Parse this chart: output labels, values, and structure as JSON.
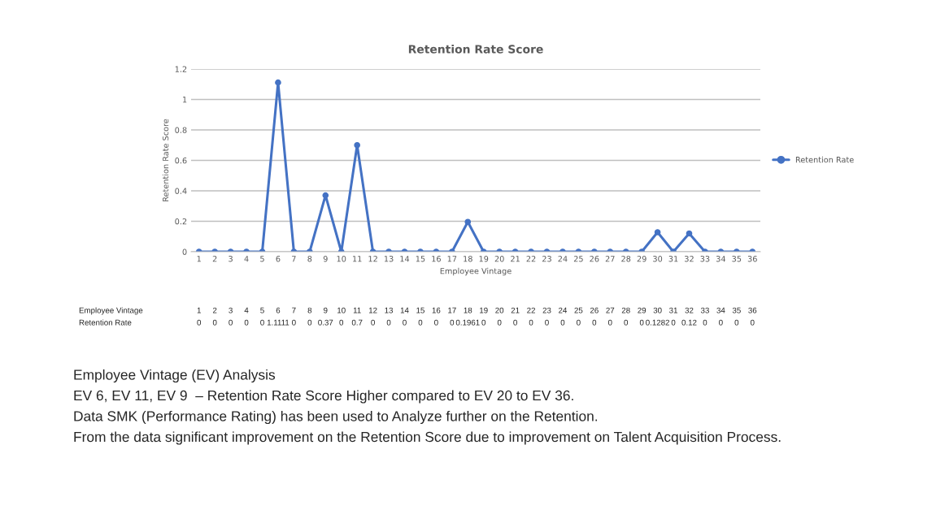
{
  "chart_data": {
    "type": "line",
    "title": "Retention Rate Score",
    "xlabel": "Employee Vintage",
    "ylabel": "Retention Rate Score",
    "categories": [
      "1",
      "2",
      "3",
      "4",
      "5",
      "6",
      "7",
      "8",
      "9",
      "10",
      "11",
      "12",
      "13",
      "14",
      "15",
      "16",
      "17",
      "18",
      "19",
      "20",
      "21",
      "22",
      "23",
      "24",
      "25",
      "26",
      "27",
      "28",
      "29",
      "30",
      "31",
      "32",
      "33",
      "34",
      "35",
      "36"
    ],
    "series": [
      {
        "name": "Retention Rate",
        "color": "#4472c4",
        "values": [
          0,
          0,
          0,
          0,
          0,
          1.1111,
          0,
          0,
          0.37,
          0,
          0.7,
          0,
          0,
          0,
          0,
          0,
          0,
          0.1961,
          0,
          0,
          0,
          0,
          0,
          0,
          0,
          0,
          0,
          0,
          0,
          0.1282,
          0,
          0.12,
          0,
          0,
          0,
          0
        ],
        "value_labels": [
          "0",
          "0",
          "0",
          "0",
          "0",
          "1.1111",
          "0",
          "0",
          "0.37",
          "0",
          "0.7",
          "0",
          "0",
          "0",
          "0",
          "0",
          "0",
          "0.1961",
          "0",
          "0",
          "0",
          "0",
          "0",
          "0",
          "0",
          "0",
          "0",
          "0",
          "0",
          "0.1282",
          "0",
          "0.12",
          "0",
          "0",
          "0",
          "0"
        ]
      }
    ],
    "ylim": [
      0,
      1.2
    ],
    "yticks": [
      0,
      0.2,
      0.4,
      0.6,
      0.8,
      1,
      1.2
    ],
    "grid": "y",
    "legend": "right",
    "marker": "circle",
    "line_style": "solid",
    "annotations": [
      "Employee Vintage (EV) Analysis",
      "EV 6, EV 11, EV 9  – Retention Rate Score Higher compared to EV 20 to EV 36.",
      "Data SMK (Performance Rating) has been used to Analyze further on the Retention.",
      "From the data significant improvement on the Retention Score due to improvement on Talent Acquisition Process."
    ]
  }
}
